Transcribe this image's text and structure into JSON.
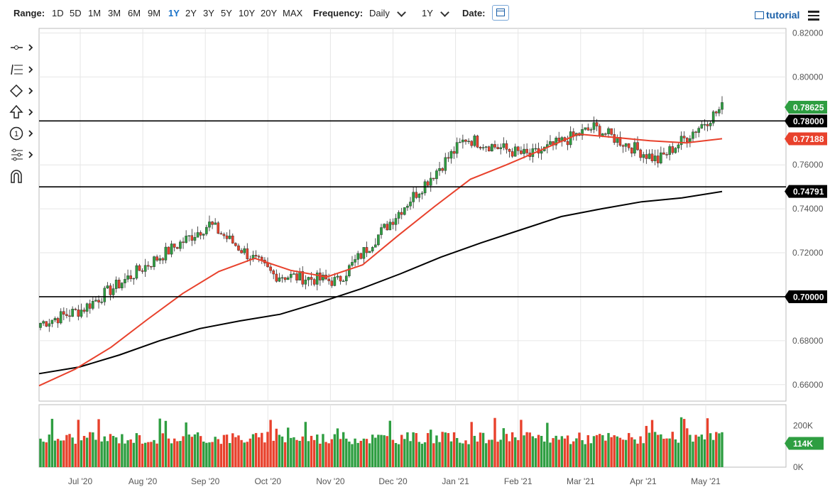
{
  "toolbar": {
    "range_label": "Range:",
    "ranges": [
      "1D",
      "5D",
      "1M",
      "3M",
      "6M",
      "9M",
      "1Y",
      "2Y",
      "3Y",
      "5Y",
      "10Y",
      "20Y",
      "MAX"
    ],
    "active_range": "1Y",
    "frequency_label": "Frequency:",
    "frequency_value": "Daily",
    "period_value": "1Y",
    "date_label": "Date:",
    "tutorial_label": "tutorial"
  },
  "tools": [
    {
      "icon": "line-tool-icon"
    },
    {
      "icon": "fibonacci-tool-icon"
    },
    {
      "icon": "shape-tool-icon"
    },
    {
      "icon": "arrow-tool-icon"
    },
    {
      "icon": "elliott-wave-tool-icon"
    },
    {
      "icon": "pattern-tool-icon"
    },
    {
      "icon": "magnet-icon"
    }
  ],
  "colors": {
    "up": "#2e9e41",
    "down": "#e8412c",
    "ma_short": "#e8412c",
    "ma_long": "#000000",
    "accent": "#1a73c9"
  },
  "chart_data": {
    "type": "candlestick",
    "y_ticks": [
      "0.82000",
      "0.80000",
      "0.78000",
      "0.76000",
      "0.74000",
      "0.72000",
      "0.70000",
      "0.68000",
      "0.66000"
    ],
    "ylim": [
      0.6525,
      0.8221
    ],
    "x_ticks": [
      "Jul '20",
      "Aug '20",
      "Sep '20",
      "Oct '20",
      "Nov '20",
      "Dec '20",
      "Jan '21",
      "Feb '21",
      "Mar '21",
      "Apr '21",
      "May '21"
    ],
    "price_labels": [
      {
        "text": "0.78625",
        "value": 0.78625,
        "color": "#2e9e41"
      },
      {
        "text": "0.78000",
        "value": 0.78,
        "color": "#000000"
      },
      {
        "text": "0.77188",
        "value": 0.77188,
        "color": "#e8412c"
      },
      {
        "text": "0.74791",
        "value": 0.74791,
        "color": "#000000"
      },
      {
        "text": "0.70000",
        "value": 0.7,
        "color": "#000000"
      }
    ],
    "horizontal_lines": [
      0.78,
      0.75,
      0.7
    ],
    "trend_anchors": [
      {
        "date": "Jun '20",
        "price": 0.688
      },
      {
        "date": "Jul '20",
        "price": 0.694
      },
      {
        "date": "Aug '20",
        "price": 0.714
      },
      {
        "date": "Sep '20",
        "price": 0.733
      },
      {
        "date": "Oct '20",
        "price": 0.71
      },
      {
        "date": "Nov '20",
        "price": 0.707
      },
      {
        "date": "Dec '20",
        "price": 0.74
      },
      {
        "date": "Jan '21",
        "price": 0.772
      },
      {
        "date": "Feb '21",
        "price": 0.764
      },
      {
        "date": "Mar '21",
        "price": 0.777
      },
      {
        "date": "Apr '21",
        "price": 0.762
      },
      {
        "date": "May '21",
        "price": 0.786
      }
    ],
    "ma_short": [
      0.6595,
      0.667,
      0.677,
      0.6895,
      0.7015,
      0.7115,
      0.7175,
      0.712,
      0.709,
      0.7145,
      0.728,
      0.741,
      0.7535,
      0.76,
      0.767,
      0.774,
      0.7725,
      0.771,
      0.77,
      0.7719
    ],
    "ma_long": [
      0.665,
      0.668,
      0.6735,
      0.68,
      0.6855,
      0.689,
      0.692,
      0.6975,
      0.7035,
      0.7105,
      0.718,
      0.7245,
      0.7305,
      0.7365,
      0.74,
      0.7432,
      0.745,
      0.7479
    ],
    "volume": {
      "y_ticks": [
        "200K",
        "0K"
      ],
      "ylim": [
        0,
        300000
      ],
      "current_label": "114K"
    }
  }
}
